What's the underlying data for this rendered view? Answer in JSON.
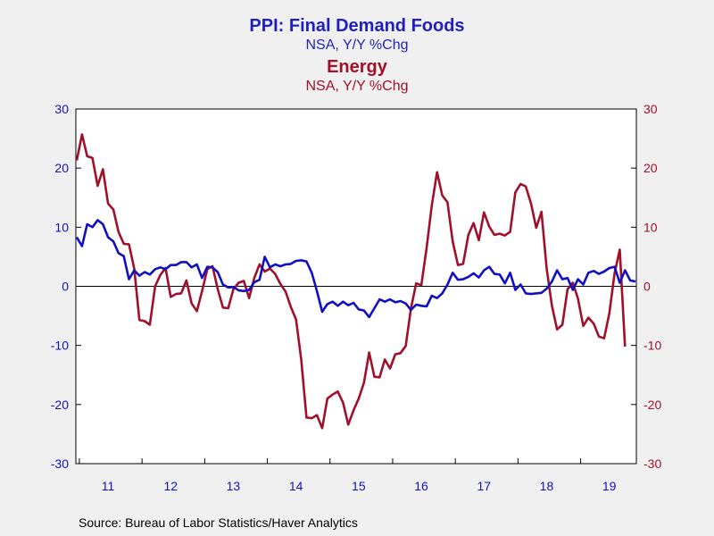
{
  "titles": {
    "left_title": "PPI: Final Demand Foods",
    "left_subtitle": "NSA, Y/Y %Chg",
    "right_title": "Energy",
    "right_subtitle": "NSA, Y/Y %Chg"
  },
  "source": "Source:  Bureau of Labor Statistics/Haver Analytics",
  "colors": {
    "foods": "#1010c0",
    "energy": "#a0102a",
    "background": "#f0f0f0",
    "plot": "#ffffff"
  },
  "chart_data": {
    "type": "line",
    "x_start": "2010-12",
    "x_end": "2019-12",
    "xtick_labels": [
      "11",
      "12",
      "13",
      "14",
      "15",
      "16",
      "17",
      "18",
      "19"
    ],
    "ylim_left": [
      -30,
      30
    ],
    "ylim_right": [
      -30,
      30
    ],
    "yticks_left": [
      "30",
      "20",
      "10",
      "0",
      "-10",
      "-20",
      "-30"
    ],
    "yticks_right": [
      "30",
      "20",
      "10",
      "0",
      "-10",
      "-20",
      "-30"
    ],
    "zero_line": true,
    "grid": false,
    "series": [
      {
        "name": "PPI: Final Demand Foods",
        "axis": "left",
        "color": "#1010c0",
        "values": [
          8.3,
          6.8,
          10.5,
          10.0,
          11.2,
          10.5,
          8.3,
          7.6,
          5.6,
          5.1,
          1.2,
          2.7,
          1.8,
          2.4,
          2.0,
          2.9,
          3.2,
          2.9,
          3.6,
          3.6,
          4.1,
          4.1,
          3.2,
          3.7,
          1.4,
          3.3,
          3.2,
          2.4,
          0.3,
          -0.2,
          -0.1,
          -0.7,
          -0.8,
          -0.6,
          0.7,
          1.1,
          5.0,
          3.2,
          3.7,
          3.4,
          3.7,
          3.8,
          4.3,
          4.4,
          4.2,
          2.3,
          -0.8,
          -4.3,
          -3.0,
          -2.6,
          -3.3,
          -2.6,
          -3.2,
          -2.8,
          -3.9,
          -4.1,
          -5.2,
          -3.7,
          -2.2,
          -2.6,
          -2.2,
          -2.7,
          -2.5,
          -2.9,
          -4.0,
          -3.1,
          -3.3,
          -3.4,
          -1.6,
          -2.0,
          -1.2,
          0.3,
          2.3,
          1.1,
          1.2,
          1.6,
          2.2,
          1.5,
          2.7,
          3.3,
          2.1,
          2.0,
          0.5,
          2.3,
          -0.6,
          0.3,
          -1.2,
          -1.3,
          -1.2,
          -1.1,
          -0.4,
          0.8,
          2.7,
          1.2,
          1.4,
          -0.6,
          1.2,
          0.3,
          2.3,
          2.6,
          2.1,
          2.5,
          3.1,
          3.3,
          0.6,
          2.7,
          1.0,
          0.8
        ]
      },
      {
        "name": "Energy",
        "axis": "right",
        "color": "#a0102a",
        "values": [
          21.3,
          25.7,
          22.0,
          21.7,
          17.0,
          19.8,
          14.0,
          13.0,
          9.2,
          7.2,
          7.1,
          3.0,
          -5.7,
          -5.9,
          -6.5,
          0.0,
          1.9,
          3.1,
          -1.8,
          -1.3,
          -1.2,
          1.0,
          -2.9,
          -4.2,
          -0.8,
          2.9,
          3.4,
          -0.5,
          -3.6,
          -3.7,
          -0.5,
          0.6,
          0.9,
          -2.0,
          1.4,
          3.7,
          2.5,
          3.0,
          2.1,
          0.4,
          -0.9,
          -3.5,
          -5.6,
          -12.5,
          -22.2,
          -22.3,
          -21.8,
          -24.0,
          -19.0,
          -18.3,
          -17.8,
          -19.7,
          -23.4,
          -21.0,
          -19.0,
          -16.3,
          -11.2,
          -15.3,
          -15.4,
          -12.4,
          -13.9,
          -11.5,
          -11.3,
          -10.1,
          -3.8,
          0.5,
          0.2,
          6.5,
          13.7,
          19.3,
          15.4,
          14.2,
          7.6,
          3.6,
          3.8,
          8.7,
          10.7,
          7.8,
          12.5,
          10.1,
          8.7,
          8.9,
          8.6,
          9.2,
          15.9,
          17.3,
          16.9,
          14.0,
          9.9,
          12.6,
          3.0,
          -3.3,
          -7.3,
          -6.5,
          -0.5,
          0.6,
          -2.1,
          -6.7,
          -5.3,
          -6.3,
          -8.5,
          -8.8,
          -4.6,
          2.2,
          6.2,
          -10.2
        ]
      }
    ]
  }
}
